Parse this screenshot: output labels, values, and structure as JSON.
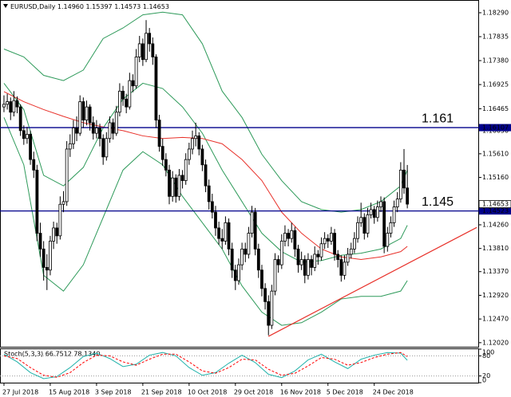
{
  "chart_data": [
    {
      "type": "candlestick",
      "header": {
        "symbol": "EURUSD,Daily",
        "ohlc_labels": [
          "1.14960",
          "1.15397",
          "1.14573",
          "1.14653"
        ]
      },
      "xlim": [
        -1.2,
        143.7
      ],
      "xticks": [
        {
          "value": 0,
          "label": "27 Jul 2018"
        },
        {
          "value": 14,
          "label": "15 Aug 2018"
        },
        {
          "value": 28,
          "label": "3 Sep 2018"
        },
        {
          "value": 42,
          "label": "21 Sep 2018"
        },
        {
          "value": 56,
          "label": "10 Oct 2018"
        },
        {
          "value": 70,
          "label": "29 Oct 2018"
        },
        {
          "value": 84,
          "label": "16 Nov 2018"
        },
        {
          "value": 98,
          "label": "5 Dec 2018"
        },
        {
          "value": 112,
          "label": "24 Dec 2018"
        }
      ],
      "ylim": [
        1.11942,
        1.18532
      ],
      "yticks": [
        {
          "value": 1.1829,
          "label": "1.18290"
        },
        1.17835,
        {
          "value": 1.1738,
          "label": "1.17380"
        },
        1.16925,
        1.16465,
        {
          "value": 1.1605,
          "label": "1.16050"
        },
        {
          "value": 1.1561,
          "label": "1.15610"
        },
        {
          "value": 1.1516,
          "label": "1.15160"
        },
        {
          "value": 1.1426,
          "label": "1.14260"
        },
        {
          "value": 1.1381,
          "label": "1.13810"
        },
        {
          "value": 1.1337,
          "label": "1.13370"
        },
        {
          "value": 1.1292,
          "label": "1.12920"
        },
        {
          "value": 1.1247,
          "label": "1.12470"
        },
        {
          "value": 1.1202,
          "label": "1.12020"
        }
      ],
      "candles": [
        [
          1.165,
          1.1672,
          1.164,
          1.1655
        ],
        [
          1.1655,
          1.1675,
          1.1645,
          1.166
        ],
        [
          1.166,
          1.1668,
          1.1625,
          1.164
        ],
        [
          1.164,
          1.168,
          1.1632,
          1.1662
        ],
        [
          1.1662,
          1.167,
          1.1638,
          1.165
        ],
        [
          1.165,
          1.1655,
          1.1595,
          1.1605
        ],
        [
          1.1605,
          1.1615,
          1.1578,
          1.159
        ],
        [
          1.159,
          1.1612,
          1.158,
          1.1598
        ],
        [
          1.1598,
          1.1605,
          1.154,
          1.155
        ],
        [
          1.155,
          1.1565,
          1.1515,
          1.153
        ],
        [
          1.153,
          1.154,
          1.1395,
          1.141
        ],
        [
          1.141,
          1.143,
          1.1365,
          1.138
        ],
        [
          1.138,
          1.1395,
          1.132,
          1.1345
        ],
        [
          1.1345,
          1.137,
          1.1302,
          1.134
        ],
        [
          1.134,
          1.1405,
          1.133,
          1.1395
        ],
        [
          1.1395,
          1.1432,
          1.138,
          1.142
        ],
        [
          1.142,
          1.143,
          1.139,
          1.1405
        ],
        [
          1.1405,
          1.148,
          1.1398,
          1.1465
        ],
        [
          1.1465,
          1.149,
          1.145,
          1.147
        ],
        [
          1.147,
          1.1585,
          1.1462,
          1.157
        ],
        [
          1.157,
          1.1598,
          1.1555,
          1.158
        ],
        [
          1.158,
          1.1625,
          1.157,
          1.161
        ],
        [
          1.161,
          1.1632,
          1.1585,
          1.16
        ],
        [
          1.16,
          1.1672,
          1.1595,
          1.166
        ],
        [
          1.166,
          1.1668,
          1.161,
          1.1625
        ],
        [
          1.1625,
          1.1662,
          1.1615,
          1.165
        ],
        [
          1.165,
          1.1655,
          1.1605,
          1.162
        ],
        [
          1.162,
          1.1632,
          1.1588,
          1.16
        ],
        [
          1.16,
          1.1625,
          1.159,
          1.161
        ],
        [
          1.161,
          1.1618,
          1.1575,
          1.159
        ],
        [
          1.159,
          1.1598,
          1.154,
          1.1555
        ],
        [
          1.1555,
          1.1602,
          1.1548,
          1.159
        ],
        [
          1.159,
          1.1632,
          1.1582,
          1.162
        ],
        [
          1.162,
          1.1628,
          1.1588,
          1.16
        ],
        [
          1.16,
          1.1652,
          1.1595,
          1.164
        ],
        [
          1.164,
          1.1695,
          1.1632,
          1.168
        ],
        [
          1.168,
          1.169,
          1.1652,
          1.1665
        ],
        [
          1.1665,
          1.1675,
          1.1638,
          1.165
        ],
        [
          1.165,
          1.1715,
          1.1645,
          1.17
        ],
        [
          1.17,
          1.1712,
          1.1678,
          1.169
        ],
        [
          1.169,
          1.176,
          1.1685,
          1.1745
        ],
        [
          1.1745,
          1.1785,
          1.1735,
          1.177
        ],
        [
          1.177,
          1.178,
          1.1728,
          1.174
        ],
        [
          1.174,
          1.1815,
          1.1735,
          1.179
        ],
        [
          1.179,
          1.18,
          1.1755,
          1.177
        ],
        [
          1.177,
          1.1782,
          1.173,
          1.1745
        ],
        [
          1.1745,
          1.175,
          1.161,
          1.1625
        ],
        [
          1.1625,
          1.1635,
          1.1565,
          1.1575
        ],
        [
          1.1575,
          1.159,
          1.1538,
          1.155
        ],
        [
          1.155,
          1.1562,
          1.1518,
          1.153
        ],
        [
          1.153,
          1.154,
          1.1465,
          1.148
        ],
        [
          1.148,
          1.1528,
          1.147,
          1.1515
        ],
        [
          1.1515,
          1.1522,
          1.1468,
          1.148
        ],
        [
          1.148,
          1.1532,
          1.1472,
          1.152
        ],
        [
          1.152,
          1.153,
          1.1495,
          1.151
        ],
        [
          1.151,
          1.1562,
          1.1502,
          1.155
        ],
        [
          1.155,
          1.1582,
          1.154,
          1.157
        ],
        [
          1.157,
          1.1605,
          1.156,
          1.159
        ],
        [
          1.159,
          1.162,
          1.1575,
          1.1595
        ],
        [
          1.1595,
          1.1602,
          1.1558,
          1.157
        ],
        [
          1.157,
          1.1578,
          1.1528,
          1.154
        ],
        [
          1.154,
          1.155,
          1.1488,
          1.15
        ],
        [
          1.15,
          1.1512,
          1.1455,
          1.147
        ],
        [
          1.147,
          1.1485,
          1.1438,
          1.145
        ],
        [
          1.145,
          1.1462,
          1.1405,
          1.142
        ],
        [
          1.142,
          1.1432,
          1.1388,
          1.14
        ],
        [
          1.14,
          1.1418,
          1.138,
          1.1395
        ],
        [
          1.1395,
          1.1442,
          1.1388,
          1.143
        ],
        [
          1.143,
          1.1438,
          1.1368,
          1.138
        ],
        [
          1.138,
          1.1392,
          1.1325,
          1.134
        ],
        [
          1.134,
          1.135,
          1.1302,
          1.132
        ],
        [
          1.132,
          1.1362,
          1.1312,
          1.135
        ],
        [
          1.135,
          1.1392,
          1.134,
          1.138
        ],
        [
          1.138,
          1.1392,
          1.1355,
          1.137
        ],
        [
          1.137,
          1.1422,
          1.1362,
          1.141
        ],
        [
          1.141,
          1.1462,
          1.1402,
          1.145
        ],
        [
          1.145,
          1.1458,
          1.1368,
          1.138
        ],
        [
          1.138,
          1.139,
          1.1325,
          1.134
        ],
        [
          1.134,
          1.135,
          1.129,
          1.1305
        ],
        [
          1.1305,
          1.1315,
          1.1265,
          1.128
        ],
        [
          1.128,
          1.1292,
          1.1216,
          1.1235
        ],
        [
          1.1235,
          1.1312,
          1.1228,
          1.13
        ],
        [
          1.13,
          1.1372,
          1.1292,
          1.136
        ],
        [
          1.136,
          1.1368,
          1.1335,
          1.135
        ],
        [
          1.135,
          1.1408,
          1.1342,
          1.1395
        ],
        [
          1.1395,
          1.1425,
          1.1385,
          1.141
        ],
        [
          1.141,
          1.1418,
          1.1385,
          1.14
        ],
        [
          1.14,
          1.143,
          1.1392,
          1.1415
        ],
        [
          1.1415,
          1.1422,
          1.1365,
          1.138
        ],
        [
          1.138,
          1.1388,
          1.1335,
          1.135
        ],
        [
          1.135,
          1.1375,
          1.134,
          1.136
        ],
        [
          1.136,
          1.1368,
          1.1315,
          1.133
        ],
        [
          1.133,
          1.1372,
          1.1322,
          1.136
        ],
        [
          1.136,
          1.1368,
          1.133,
          1.1345
        ],
        [
          1.1345,
          1.1385,
          1.1338,
          1.137
        ],
        [
          1.137,
          1.1378,
          1.135,
          1.1365
        ],
        [
          1.1365,
          1.1402,
          1.1358,
          1.139
        ],
        [
          1.139,
          1.1412,
          1.138,
          1.14
        ],
        [
          1.14,
          1.1408,
          1.1382,
          1.1395
        ],
        [
          1.1395,
          1.1422,
          1.1388,
          1.141
        ],
        [
          1.141,
          1.1418,
          1.1358,
          1.137
        ],
        [
          1.137,
          1.1378,
          1.1345,
          1.136
        ],
        [
          1.136,
          1.1368,
          1.1318,
          1.133
        ],
        [
          1.133,
          1.1368,
          1.1322,
          1.1355
        ],
        [
          1.1355,
          1.1382,
          1.1348,
          1.137
        ],
        [
          1.137,
          1.1392,
          1.1362,
          1.138
        ],
        [
          1.138,
          1.1412,
          1.1372,
          1.14
        ],
        [
          1.14,
          1.1442,
          1.1392,
          1.143
        ],
        [
          1.143,
          1.1468,
          1.1422,
          1.144
        ],
        [
          1.144,
          1.1448,
          1.1398,
          1.141
        ],
        [
          1.141,
          1.1458,
          1.1402,
          1.1445
        ],
        [
          1.1445,
          1.1468,
          1.1438,
          1.1455
        ],
        [
          1.1455,
          1.1462,
          1.1428,
          1.144
        ],
        [
          1.144,
          1.1472,
          1.1432,
          1.146
        ],
        [
          1.146,
          1.148,
          1.145,
          1.147
        ],
        [
          1.147,
          1.1478,
          1.1372,
          1.1385
        ],
        [
          1.1385,
          1.1422,
          1.1375,
          1.141
        ],
        [
          1.141,
          1.1442,
          1.1402,
          1.143
        ],
        [
          1.143,
          1.1472,
          1.1422,
          1.146
        ],
        [
          1.146,
          1.1488,
          1.145,
          1.1475
        ],
        [
          1.1475,
          1.1545,
          1.1468,
          1.153
        ],
        [
          1.153,
          1.157,
          1.1485,
          1.1496
        ],
        [
          1.1496,
          1.15397,
          1.14573,
          1.14653
        ]
      ],
      "series": [
        {
          "color": "#2e9a5a",
          "x": [
            0,
            6,
            12,
            18,
            24,
            30,
            36,
            42,
            48,
            54,
            60,
            66,
            72,
            78,
            84,
            90,
            96,
            102,
            108,
            114,
            120,
            122
          ],
          "values": [
            1.176,
            1.1745,
            1.171,
            1.17,
            1.172,
            1.178,
            1.18,
            1.1825,
            1.183,
            1.1825,
            1.177,
            1.168,
            1.163,
            1.156,
            1.151,
            1.147,
            1.1455,
            1.145,
            1.1455,
            1.147,
            1.15,
            1.153
          ]
        },
        {
          "color": "#2e9a5a",
          "x": [
            0,
            6,
            12,
            18,
            24,
            30,
            36,
            42,
            48,
            54,
            60,
            66,
            72,
            78,
            84,
            90,
            96,
            102,
            108,
            114,
            120,
            122
          ],
          "values": [
            1.1695,
            1.1645,
            1.152,
            1.15,
            1.1535,
            1.161,
            1.1665,
            1.1695,
            1.1685,
            1.165,
            1.16,
            1.153,
            1.147,
            1.141,
            1.1375,
            1.1355,
            1.1358,
            1.1368,
            1.1372,
            1.138,
            1.14,
            1.1425
          ]
        },
        {
          "color": "#2e9a5a",
          "x": [
            0,
            6,
            12,
            18,
            24,
            30,
            36,
            42,
            48,
            54,
            60,
            66,
            72,
            78,
            84,
            90,
            96,
            102,
            108,
            114,
            120,
            122
          ],
          "values": [
            1.163,
            1.154,
            1.133,
            1.13,
            1.135,
            1.144,
            1.153,
            1.1565,
            1.154,
            1.148,
            1.143,
            1.138,
            1.131,
            1.126,
            1.1235,
            1.124,
            1.126,
            1.1285,
            1.129,
            1.129,
            1.13,
            1.132
          ]
        },
        {
          "color": "#e8312a",
          "x": [
            0,
            6,
            12,
            18,
            24,
            30,
            36,
            42,
            48,
            54,
            60,
            66,
            72,
            78,
            84,
            90,
            96,
            102,
            108,
            114,
            120,
            122
          ],
          "values": [
            1.1679,
            1.166,
            1.1645,
            1.1632,
            1.162,
            1.1612,
            1.1605,
            1.1595,
            1.159,
            1.1592,
            1.159,
            1.158,
            1.155,
            1.151,
            1.145,
            1.141,
            1.138,
            1.1365,
            1.136,
            1.1365,
            1.1375,
            1.1385
          ]
        }
      ],
      "trendline": {
        "color": "#e8312a",
        "x": [
          80,
          143
        ],
        "values": [
          1.1214,
          1.1421
        ]
      },
      "hlines": [
        {
          "value": 1.16107,
          "text": "1.161",
          "color": "#00008b"
        },
        {
          "value": 1.14523,
          "text": "1.145",
          "color": "#00008b"
        }
      ]
    },
    {
      "type": "line",
      "title": "Stoch(5,3,3) 66.7512 78.1340",
      "xlim": [
        -1.2,
        143.7
      ],
      "ylim": [
        0,
        100
      ],
      "yticks": [
        100,
        80,
        20,
        0
      ],
      "levels": [
        80,
        20
      ],
      "series": [
        {
          "color": "#20b2aa",
          "dashed": false,
          "x": [
            0,
            4,
            8,
            12,
            16,
            20,
            24,
            28,
            32,
            36,
            40,
            44,
            48,
            52,
            56,
            60,
            64,
            68,
            72,
            76,
            80,
            84,
            88,
            92,
            96,
            100,
            104,
            108,
            112,
            116,
            120,
            122
          ],
          "values": [
            85,
            62,
            30,
            12,
            18,
            45,
            78,
            88,
            72,
            48,
            55,
            82,
            90,
            80,
            45,
            22,
            30,
            58,
            82,
            60,
            25,
            15,
            35,
            68,
            85,
            62,
            42,
            70,
            82,
            90,
            88,
            66.7512
          ]
        },
        {
          "color": "#ff0000",
          "dashed": true,
          "x": [
            0,
            4,
            8,
            12,
            16,
            20,
            24,
            28,
            32,
            36,
            40,
            44,
            48,
            52,
            56,
            60,
            64,
            68,
            72,
            76,
            80,
            84,
            88,
            92,
            96,
            100,
            104,
            108,
            112,
            116,
            120,
            122
          ],
          "values": [
            80,
            72,
            45,
            22,
            16,
            30,
            60,
            82,
            80,
            62,
            52,
            70,
            85,
            85,
            62,
            35,
            28,
            45,
            70,
            68,
            40,
            22,
            28,
            50,
            75,
            70,
            52,
            60,
            75,
            85,
            90,
            78.134
          ]
        }
      ]
    }
  ]
}
